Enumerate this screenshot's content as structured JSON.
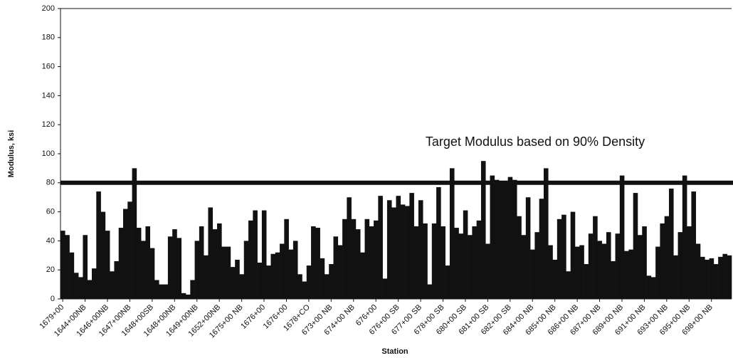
{
  "chart_data": {
    "type": "bar",
    "x_label": "Station",
    "y_label": "Modulus, ksi",
    "annotation": "Target Modulus based on 90% Density",
    "target_line": 80,
    "color": "#111111",
    "ylim": [
      0,
      200
    ],
    "yticks": [
      0,
      20,
      40,
      60,
      80,
      100,
      120,
      140,
      160,
      180,
      200
    ],
    "categories": [
      "1679+00",
      null,
      null,
      null,
      null,
      "1644+00NB",
      null,
      null,
      null,
      null,
      "1646+00NB",
      null,
      null,
      null,
      null,
      "1647+00NB",
      null,
      null,
      null,
      null,
      "1648+00SB",
      null,
      null,
      null,
      null,
      "1648+00NB",
      null,
      null,
      null,
      null,
      "1649+00NB",
      null,
      null,
      null,
      null,
      "1652+00NB",
      null,
      null,
      null,
      null,
      "1675+00 NB",
      null,
      null,
      null,
      null,
      "1676+00",
      null,
      null,
      null,
      null,
      "1676+00",
      null,
      null,
      null,
      null,
      "1678+CO",
      null,
      null,
      null,
      null,
      "673+00 NB",
      null,
      null,
      null,
      null,
      "674+00 NB",
      null,
      null,
      null,
      null,
      "676+00",
      null,
      null,
      null,
      null,
      "676+00 SB",
      null,
      null,
      null,
      null,
      "677+00 SB",
      null,
      null,
      null,
      null,
      "678+00 SB",
      null,
      null,
      null,
      null,
      "680+00 SB",
      null,
      null,
      null,
      null,
      "681+00 SB",
      null,
      null,
      null,
      null,
      "682+00 SB",
      null,
      null,
      null,
      null,
      "684+00 NB",
      null,
      null,
      null,
      null,
      "685+00 NB",
      null,
      null,
      null,
      null,
      "686+00 NB",
      null,
      null,
      null,
      null,
      "687+00 NB",
      null,
      null,
      null,
      null,
      "689+00 NB",
      null,
      null,
      null,
      null,
      "691+00 NB",
      null,
      null,
      null,
      null,
      "693+00 NB",
      null,
      null,
      null,
      null,
      "695+00 NB",
      null,
      null,
      null,
      null,
      "698+00 NB",
      null,
      null,
      null,
      null
    ],
    "values": [
      47,
      44,
      32,
      18,
      15,
      44,
      13,
      21,
      74,
      60,
      47,
      19,
      26,
      49,
      62,
      67,
      90,
      49,
      40,
      50,
      35,
      13,
      10,
      10,
      43,
      48,
      42,
      4,
      3,
      13,
      40,
      50,
      30,
      63,
      48,
      52,
      36,
      36,
      22,
      27,
      17,
      40,
      54,
      61,
      25,
      61,
      23,
      31,
      32,
      38,
      55,
      34,
      40,
      17,
      12,
      23,
      50,
      49,
      28,
      17,
      24,
      43,
      37,
      55,
      70,
      55,
      48,
      32,
      55,
      50,
      54,
      71,
      14,
      68,
      63,
      71,
      65,
      64,
      73,
      50,
      68,
      52,
      10,
      52,
      77,
      50,
      23,
      90,
      49,
      45,
      61,
      44,
      50,
      54,
      95,
      38,
      85,
      82,
      81,
      81,
      84,
      82,
      57,
      44,
      70,
      34,
      46,
      69,
      90,
      37,
      27,
      55,
      58,
      19,
      60,
      36,
      37,
      24,
      45,
      57,
      40,
      38,
      46,
      26,
      45,
      85,
      33,
      34,
      73,
      44,
      50,
      16,
      15,
      36,
      52,
      57,
      76,
      30,
      46,
      85,
      50,
      74,
      38,
      29,
      27,
      28,
      24,
      29,
      31,
      30
    ]
  }
}
